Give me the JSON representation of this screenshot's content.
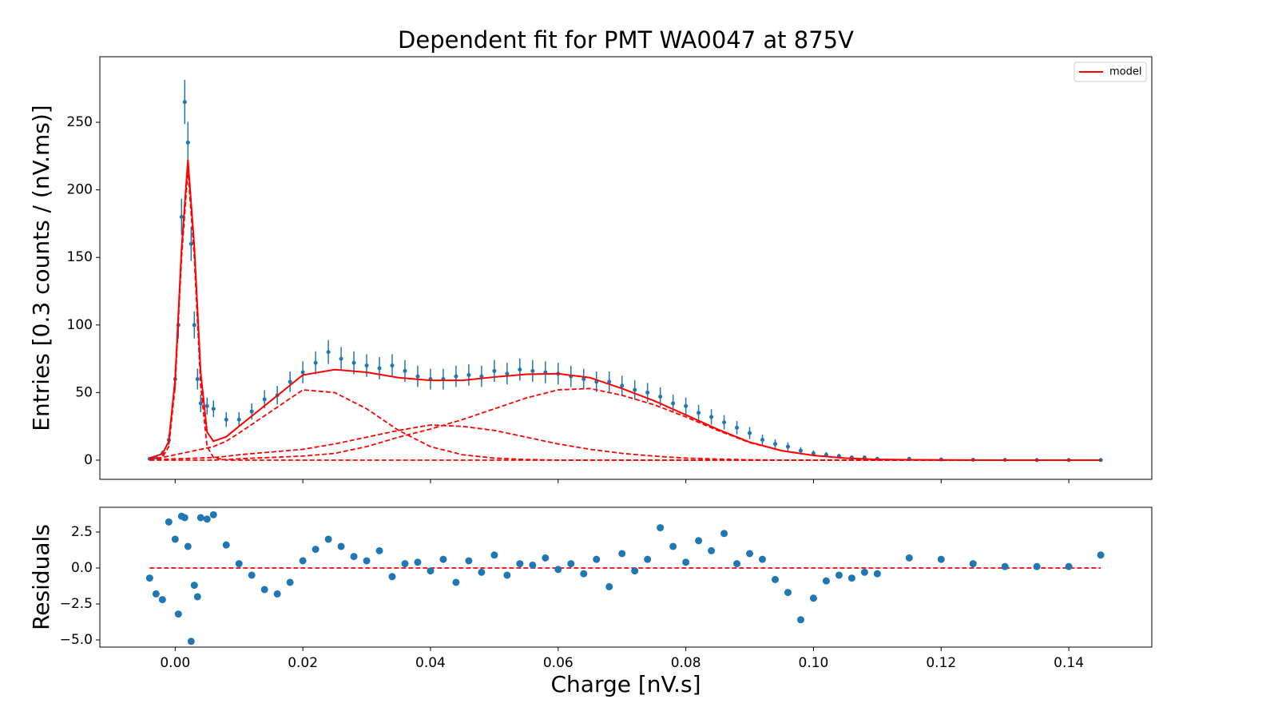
{
  "chart_data": [
    {
      "type": "errorbar",
      "title": "Dependent fit for PMT WA0047 at 875V",
      "y_label": "Entries [0.3 counts / (nV.ms)]",
      "color": "#1f77b4",
      "x": [
        -0.004,
        -0.003,
        -0.002,
        -0.001,
        0,
        0.0005,
        0.001,
        0.0015,
        0.002,
        0.0025,
        0.003,
        0.0035,
        0.004,
        0.005,
        0.006,
        0.008,
        0.01,
        0.012,
        0.014,
        0.016,
        0.018,
        0.02,
        0.022,
        0.024,
        0.026,
        0.028,
        0.03,
        0.032,
        0.034,
        0.036,
        0.038,
        0.04,
        0.042,
        0.044,
        0.046,
        0.048,
        0.05,
        0.052,
        0.054,
        0.056,
        0.058,
        0.06,
        0.062,
        0.064,
        0.066,
        0.068,
        0.07,
        0.072,
        0.074,
        0.076,
        0.078,
        0.08,
        0.082,
        0.084,
        0.086,
        0.088,
        0.09,
        0.092,
        0.094,
        0.096,
        0.098,
        0.1,
        0.102,
        0.104,
        0.106,
        0.108,
        0.11,
        0.115,
        0.12,
        0.125,
        0.13,
        0.135,
        0.14,
        0.145
      ],
      "values": [
        1,
        2,
        5,
        15,
        60,
        100,
        180,
        265,
        235,
        160,
        100,
        60,
        42,
        40,
        38,
        30,
        30,
        36,
        45,
        48,
        58,
        65,
        72,
        80,
        75,
        72,
        70,
        68,
        70,
        66,
        62,
        60,
        60,
        62,
        63,
        62,
        66,
        64,
        67,
        66,
        65,
        64,
        62,
        60,
        58,
        58,
        55,
        52,
        50,
        47,
        42,
        40,
        35,
        32,
        28,
        24,
        20,
        15,
        12,
        10,
        7,
        5,
        4,
        3,
        2,
        2,
        1,
        1,
        0.5,
        0.3,
        0.2,
        0.1,
        0.1,
        0.1
      ],
      "errors": [
        1,
        1.4,
        2.2,
        3.9,
        7.7,
        10,
        13.4,
        16.3,
        15.3,
        12.6,
        10,
        7.7,
        6.5,
        6.3,
        6.2,
        5.5,
        5.5,
        6,
        6.7,
        6.9,
        7.6,
        8.1,
        8.5,
        8.9,
        8.7,
        8.5,
        8.4,
        8.2,
        8.4,
        8.1,
        7.9,
        7.7,
        7.7,
        7.9,
        7.9,
        7.9,
        8.1,
        8,
        8.2,
        8.1,
        8.1,
        8,
        7.9,
        7.7,
        7.6,
        7.6,
        7.4,
        7.2,
        7.1,
        6.9,
        6.5,
        6.3,
        5.9,
        5.7,
        5.3,
        4.9,
        4.5,
        3.9,
        3.5,
        3.2,
        2.6,
        2.2,
        2,
        1.7,
        1.4,
        1.4,
        1,
        1,
        0.7,
        0.5,
        0.4,
        0.3,
        0.3,
        0.3
      ],
      "fit_x": [
        -0.004,
        -0.002,
        -0.001,
        0,
        0.001,
        0.002,
        0.003,
        0.004,
        0.005,
        0.006,
        0.008,
        0.01,
        0.015,
        0.02,
        0.025,
        0.03,
        0.035,
        0.04,
        0.045,
        0.05,
        0.055,
        0.06,
        0.065,
        0.07,
        0.075,
        0.08,
        0.085,
        0.09,
        0.095,
        0.1,
        0.105,
        0.11,
        0.12,
        0.13,
        0.145
      ],
      "model": {
        "name": "model",
        "color": "#ff0000",
        "values": [
          1.5,
          4.7,
          13.8,
          60,
          156.1,
          222.2,
          158.4,
          64.6,
          20.8,
          14,
          17.3,
          25,
          44,
          63,
          67,
          65,
          61,
          59,
          59,
          61.5,
          63.5,
          64,
          61,
          53,
          44,
          33.5,
          22.8,
          13.3,
          7,
          3.5,
          1.5,
          0.5,
          0.1,
          0,
          0
        ]
      },
      "components": [
        {
          "color": "#ff0000",
          "values": [
            0,
            2,
            10,
            55,
            150,
            215,
            150,
            55,
            10,
            2,
            0,
            0,
            0,
            0,
            0,
            0,
            0,
            0,
            0,
            0,
            0,
            0,
            0,
            0,
            0,
            0,
            0,
            0,
            0,
            0,
            0,
            0,
            0,
            0,
            0
          ]
        },
        {
          "color": "#ff0000",
          "values": [
            1,
            2,
            3,
            4,
            5,
            6,
            7,
            8,
            9,
            10,
            14,
            20,
            36,
            52,
            50,
            38,
            22,
            10,
            4,
            1.5,
            0.5,
            0,
            0,
            0,
            0,
            0,
            0,
            0,
            0,
            0,
            0,
            0,
            0,
            0,
            0
          ]
        },
        {
          "color": "#ff0000",
          "values": [
            0.5,
            0.7,
            0.8,
            1,
            1.1,
            1.2,
            1.4,
            1.6,
            1.8,
            2,
            2.8,
            4,
            6,
            8,
            12,
            17,
            22,
            26,
            25,
            22,
            17,
            12,
            8,
            5,
            3,
            1.5,
            0.8,
            0.3,
            0,
            0,
            0,
            0,
            0,
            0,
            0
          ]
        },
        {
          "color": "#ff0000",
          "values": [
            0,
            0,
            0,
            0,
            0,
            0,
            0,
            0,
            0,
            0,
            0.5,
            1,
            2,
            3,
            5,
            10,
            17,
            23,
            30,
            38,
            46,
            52,
            53,
            48,
            41,
            32,
            22,
            13,
            7,
            3.5,
            1.5,
            0.5,
            0.1,
            0,
            0
          ]
        }
      ],
      "xlim": [
        -0.0118,
        0.153
      ],
      "ylim": [
        -14.2,
        298.5
      ],
      "xticks": [
        0,
        0.02,
        0.04,
        0.06,
        0.08,
        0.1,
        0.12,
        0.14
      ],
      "xtick_labels": false,
      "yticks": [
        0,
        50,
        100,
        150,
        200,
        250
      ],
      "legend": "upper right"
    },
    {
      "type": "scatter",
      "x_label": "Charge [nV.s]",
      "y_label": "Residuals",
      "color": "#1f77b4",
      "reference_line": {
        "value": 0,
        "color": "#ff0000"
      },
      "x": [
        -0.004,
        -0.003,
        -0.002,
        -0.001,
        0,
        0.0005,
        0.001,
        0.0015,
        0.002,
        0.0025,
        0.003,
        0.0035,
        0.004,
        0.005,
        0.006,
        0.008,
        0.01,
        0.012,
        0.014,
        0.016,
        0.018,
        0.02,
        0.022,
        0.024,
        0.026,
        0.028,
        0.03,
        0.032,
        0.034,
        0.036,
        0.038,
        0.04,
        0.042,
        0.044,
        0.046,
        0.048,
        0.05,
        0.052,
        0.054,
        0.056,
        0.058,
        0.06,
        0.062,
        0.064,
        0.066,
        0.068,
        0.07,
        0.072,
        0.074,
        0.076,
        0.078,
        0.08,
        0.082,
        0.084,
        0.086,
        0.088,
        0.09,
        0.092,
        0.094,
        0.096,
        0.098,
        0.1,
        0.102,
        0.104,
        0.106,
        0.108,
        0.11,
        0.115,
        0.12,
        0.125,
        0.13,
        0.135,
        0.14,
        0.145
      ],
      "values": [
        -0.7,
        -1.8,
        -2.2,
        3.2,
        2.0,
        -3.2,
        3.6,
        3.5,
        1.5,
        -5.1,
        -1.2,
        -2.0,
        3.5,
        3.4,
        3.7,
        1.6,
        0.3,
        -0.5,
        -1.5,
        -1.8,
        -1.0,
        0.5,
        1.3,
        2.0,
        1.5,
        0.8,
        0.5,
        1.2,
        -0.6,
        0.3,
        0.4,
        -0.2,
        0.6,
        -1.0,
        0.5,
        -0.3,
        0.9,
        -0.5,
        0.3,
        0.2,
        0.7,
        -0.1,
        0.3,
        -0.4,
        0.6,
        -1.3,
        1.0,
        -0.2,
        0.6,
        2.8,
        1.5,
        0.4,
        1.9,
        1.2,
        2.4,
        0.3,
        1.0,
        0.6,
        -0.8,
        -1.7,
        -3.6,
        -2.1,
        -0.9,
        -0.5,
        -0.7,
        -0.3,
        -0.4,
        0.7,
        0.6,
        0.3,
        0.1,
        0.1,
        0.1,
        0.9
      ],
      "xlim": [
        -0.0118,
        0.153
      ],
      "ylim": [
        -5.5,
        4.22
      ],
      "xticks": [
        {
          "value": 0,
          "label": "0.00"
        },
        {
          "value": 0.02,
          "label": "0.02"
        },
        {
          "value": 0.04,
          "label": "0.04"
        },
        {
          "value": 0.06,
          "label": "0.06"
        },
        {
          "value": 0.08,
          "label": "0.08"
        },
        {
          "value": 0.1,
          "label": "0.10"
        },
        {
          "value": 0.12,
          "label": "0.12"
        },
        {
          "value": 0.14,
          "label": "0.14"
        }
      ],
      "xtick_labels": true,
      "yticks": [
        {
          "value": -5,
          "label": "−5.0"
        },
        {
          "value": -2.5,
          "label": "−2.5"
        },
        {
          "value": 0,
          "label": "0.0"
        },
        2.5
      ]
    }
  ]
}
